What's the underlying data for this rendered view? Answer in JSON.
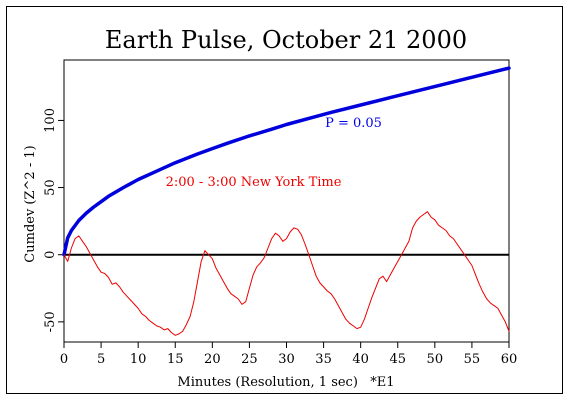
{
  "chart_data": {
    "type": "line",
    "title": "Earth Pulse, October 21 2000",
    "xlabel": "Minutes (Resolution, 1 sec)   *E1",
    "ylabel": "Cumdev (Z^2 - 1)",
    "xlim": [
      0,
      60
    ],
    "ylim": [
      -65,
      145
    ],
    "x_ticks": [
      0,
      5,
      10,
      15,
      20,
      25,
      30,
      35,
      40,
      45,
      50,
      55,
      60
    ],
    "y_ticks": [
      -50,
      0,
      50,
      100
    ],
    "grid": false,
    "reference_line": 0,
    "annotations": [
      {
        "text": "P = 0.05",
        "x": 35.2,
        "y": 95,
        "color": "#0000ee"
      },
      {
        "text": "2:00 - 3:00 New York Time",
        "x": 13.7,
        "y": 51,
        "color": "#ee0000"
      }
    ],
    "series": [
      {
        "color": "#0000dd",
        "x": [
          0,
          0.5,
          1,
          2,
          3,
          4,
          5,
          6,
          8,
          10,
          12,
          15,
          18,
          20,
          22,
          25,
          28,
          30,
          33,
          36,
          40,
          44,
          48,
          52,
          56,
          60
        ],
        "y": [
          0,
          12.5,
          18,
          25.5,
          31,
          35.5,
          39.5,
          43.5,
          50,
          56,
          61,
          68.5,
          75,
          79,
          83,
          88.5,
          93.5,
          97,
          101.5,
          106,
          111.5,
          117,
          122.5,
          128,
          133.5,
          139
        ]
      },
      {
        "color": "#ee0000",
        "x": [
          0,
          0.5,
          1,
          1.5,
          2,
          2.5,
          3,
          3.5,
          4,
          4.5,
          5,
          5.5,
          6,
          6.5,
          7,
          7.5,
          8,
          8.5,
          9,
          9.5,
          10,
          10.5,
          11,
          11.5,
          12,
          12.5,
          13,
          13.5,
          14,
          14.5,
          15,
          15.5,
          16,
          16.5,
          17,
          17.5,
          18,
          18.5,
          19,
          19.5,
          20,
          20.5,
          21,
          21.5,
          22,
          22.5,
          23,
          23.5,
          24,
          24.5,
          25,
          25.5,
          26,
          26.5,
          27,
          27.5,
          28,
          28.5,
          29,
          29.5,
          30,
          30.5,
          31,
          31.5,
          32,
          32.5,
          33,
          33.5,
          34,
          34.5,
          35,
          35.5,
          36,
          36.5,
          37,
          37.5,
          38,
          38.5,
          39,
          39.5,
          40,
          40.5,
          41,
          41.5,
          42,
          42.5,
          43,
          43.5,
          44,
          44.5,
          45,
          45.5,
          46,
          46.5,
          47,
          47.5,
          48,
          48.5,
          49,
          49.5,
          50,
          50.5,
          51,
          51.5,
          52,
          52.5,
          53,
          53.5,
          54,
          54.5,
          55,
          55.5,
          56,
          56.5,
          57,
          57.5,
          58,
          58.5,
          59,
          59.5,
          60
        ],
        "y": [
          0,
          -5,
          5,
          12,
          14,
          10,
          6,
          1,
          -4,
          -9,
          -13,
          -14,
          -17,
          -22,
          -21,
          -24,
          -28,
          -31,
          -34,
          -37,
          -40,
          -44,
          -46,
          -49,
          -51,
          -53,
          -54,
          -56,
          -55,
          -58,
          -60,
          -59,
          -57,
          -52,
          -46,
          -35,
          -20,
          -5,
          3,
          0,
          -3,
          -10,
          -15,
          -20,
          -25,
          -29,
          -31,
          -33,
          -37,
          -35,
          -25,
          -15,
          -9,
          -6,
          -2,
          5,
          12,
          16,
          14,
          10,
          12,
          17,
          20,
          19,
          15,
          8,
          0,
          -8,
          -16,
          -21,
          -24,
          -27,
          -29,
          -33,
          -38,
          -43,
          -48,
          -51,
          -53,
          -55,
          -54,
          -48,
          -40,
          -32,
          -25,
          -18,
          -16,
          -20,
          -15,
          -10,
          -5,
          0,
          5,
          10,
          20,
          25,
          28,
          30,
          32,
          28,
          26,
          22,
          20,
          18,
          14,
          12,
          8,
          4,
          0,
          -4,
          -8,
          -15,
          -22,
          -28,
          -33,
          -36,
          -38,
          -40,
          -45,
          -50,
          -57
        ]
      }
    ]
  }
}
